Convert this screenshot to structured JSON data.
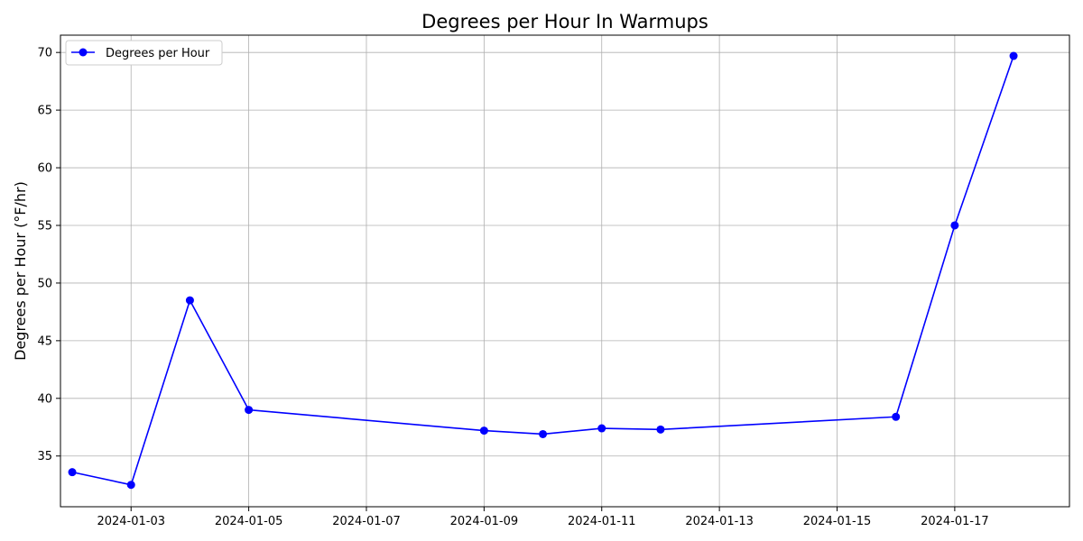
{
  "chart_data": {
    "type": "line",
    "title": "Degrees per Hour In Warmups",
    "xlabel": "",
    "ylabel": "Degrees per Hour (°F/hr)",
    "x_type": "date",
    "xlim": [
      "2024-01-01",
      "2024-01-18"
    ],
    "ylim": [
      30.6,
      71.5
    ],
    "x_ticks": [
      "2024-01-03",
      "2024-01-05",
      "2024-01-07",
      "2024-01-09",
      "2024-01-11",
      "2024-01-13",
      "2024-01-15",
      "2024-01-17"
    ],
    "y_ticks": [
      35,
      40,
      45,
      50,
      55,
      60,
      65,
      70
    ],
    "grid": true,
    "legend_position": "top-left",
    "series": [
      {
        "name": "Degrees per Hour",
        "color": "#0000ff",
        "marker": "circle",
        "x": [
          "2024-01-02",
          "2024-01-03",
          "2024-01-04",
          "2024-01-05",
          "2024-01-09",
          "2024-01-10",
          "2024-01-11",
          "2024-01-12",
          "2024-01-16",
          "2024-01-17",
          "2024-01-18"
        ],
        "y": [
          33.6,
          32.5,
          48.5,
          39.0,
          37.2,
          36.9,
          37.4,
          37.3,
          38.4,
          55.0,
          69.7
        ]
      }
    ]
  }
}
